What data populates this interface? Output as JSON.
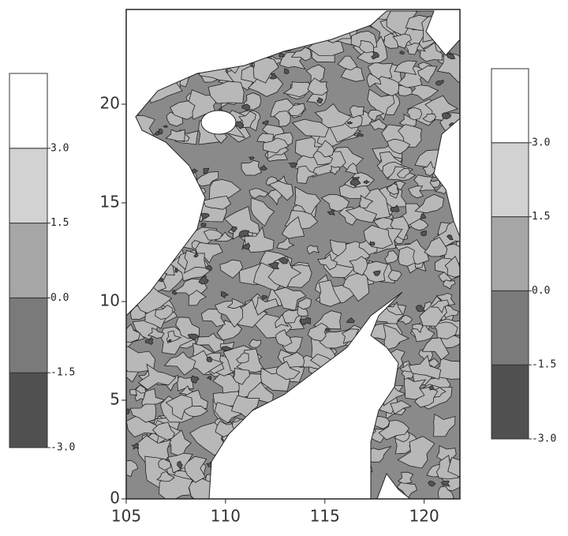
{
  "chart_data": {
    "type": "contour",
    "xlim": [
      105,
      121.8
    ],
    "ylim": [
      0,
      24.8
    ],
    "xticks": [
      105,
      110,
      115,
      120
    ],
    "yticks": [
      0,
      5,
      10,
      15,
      20
    ],
    "colorbar": {
      "clim": [
        -3.0,
        4.5
      ],
      "levels": [
        {
          "value": -3.0,
          "label": "-3.0"
        },
        {
          "value": -1.5,
          "label": "-1.5"
        },
        {
          "value": 0.0,
          "label": "0.0"
        },
        {
          "value": 1.5,
          "label": "1.5"
        },
        {
          "value": 3.0,
          "label": "3.0"
        }
      ],
      "colors": [
        "#505050",
        "#7a7a7a",
        "#a6a6a6",
        "#d2d2d2",
        "#ffffff"
      ]
    }
  }
}
